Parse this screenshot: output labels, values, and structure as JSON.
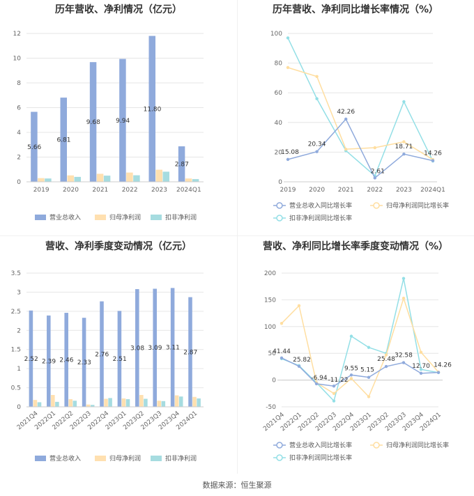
{
  "footer": "数据来源：恒生聚源",
  "colors": {
    "revenue": "#8faadc",
    "net_profit": "#ffe0b0",
    "deducted_profit": "#a6dce0",
    "revenue_line": "#8faadc",
    "net_profit_line": "#ffdea0",
    "deducted_line": "#93dfe6"
  },
  "chart_data": [
    {
      "type": "bar",
      "title": "历年营收、净利情况（亿元）",
      "categories": [
        "2019",
        "2020",
        "2021",
        "2022",
        "2023",
        "2024Q1"
      ],
      "ylim": [
        0,
        12
      ],
      "yticks": [
        0,
        2,
        4,
        6,
        8,
        10,
        12
      ],
      "series": [
        {
          "name": "营业总收入",
          "values": [
            5.66,
            6.81,
            9.68,
            9.94,
            11.8,
            2.87
          ],
          "labels": [
            "5.66",
            "6.81",
            "9.68",
            "9.94",
            "11.80",
            "2.87"
          ]
        },
        {
          "name": "归母净利润",
          "values": [
            0.3,
            0.52,
            0.65,
            0.75,
            0.98,
            0.27
          ]
        },
        {
          "name": "扣非净利润",
          "values": [
            0.27,
            0.4,
            0.5,
            0.53,
            0.82,
            0.22
          ]
        }
      ],
      "legend": "bottom"
    },
    {
      "type": "line",
      "title": "历年营收、净利同比增长率情况（%）",
      "categories": [
        "2019",
        "2020",
        "2021",
        "2022",
        "2023",
        "2024Q1"
      ],
      "ylim": [
        0,
        100
      ],
      "yticks": [
        0,
        20,
        40,
        60,
        80,
        100
      ],
      "series": [
        {
          "name": "营业总收入同比增长率",
          "values": [
            15.08,
            20.34,
            42.26,
            2.61,
            18.71,
            14.26
          ],
          "labels": [
            "15.08",
            "20.34",
            "42.26",
            "2.61",
            "18.71",
            "14.26"
          ]
        },
        {
          "name": "归母净利润同比增长率",
          "values": [
            77,
            71,
            22,
            23,
            27,
            15
          ]
        },
        {
          "name": "扣非净利润同比增长率",
          "values": [
            97,
            56,
            21,
            4,
            54,
            14
          ]
        }
      ],
      "legend": "bottom"
    },
    {
      "type": "bar",
      "title": "营收、净利季度变动情况（亿元）",
      "categories": [
        "2021Q4",
        "2022Q1",
        "2022Q2",
        "2022Q3",
        "2022Q4",
        "2023Q1",
        "2023Q2",
        "2023Q3",
        "2023Q4",
        "2024Q1"
      ],
      "ylim": [
        0,
        3.5
      ],
      "yticks": [
        0,
        0.5,
        1,
        1.5,
        2,
        2.5,
        3,
        3.5
      ],
      "series": [
        {
          "name": "营业总收入",
          "values": [
            2.52,
            2.39,
            2.46,
            2.33,
            2.76,
            2.51,
            3.08,
            3.09,
            3.11,
            2.87
          ],
          "labels": [
            "2.52",
            "2.39",
            "2.46",
            "2.33",
            "2.76",
            "2.51",
            "3.08",
            "3.09",
            "3.11",
            "2.87"
          ]
        },
        {
          "name": "归母净利润",
          "values": [
            0.18,
            0.31,
            0.2,
            0.06,
            0.21,
            0.22,
            0.31,
            0.16,
            0.3,
            0.26
          ]
        },
        {
          "name": "扣非净利润",
          "values": [
            0.12,
            0.13,
            0.16,
            0.05,
            0.23,
            0.2,
            0.21,
            0.15,
            0.27,
            0.22
          ]
        }
      ],
      "legend": "bottom"
    },
    {
      "type": "line",
      "title": "营收、净利同比增长率季度变动情况（%）",
      "categories": [
        "2021Q4",
        "2022Q1",
        "2022Q2",
        "2022Q3",
        "2022Q4",
        "2023Q1",
        "2023Q2",
        "2023Q3",
        "2023Q4",
        "2024Q1"
      ],
      "ylim": [
        -50,
        200
      ],
      "yticks": [
        -50,
        0,
        50,
        100,
        150,
        200
      ],
      "series": [
        {
          "name": "营业总收入同比增长率",
          "values": [
            41.44,
            25.82,
            -6.94,
            -11.22,
            9.55,
            5.15,
            25.48,
            32.58,
            12.7,
            14.26
          ],
          "labels": [
            "41.44",
            "25.82",
            "-6.94",
            "-11.22",
            "9.55",
            "5.15",
            "25.48",
            "32.58",
            "12.70",
            "14.26"
          ]
        },
        {
          "name": "归母净利润同比增长率",
          "values": [
            106,
            139,
            -5,
            -25,
            3,
            -31,
            47,
            153,
            52,
            15
          ]
        },
        {
          "name": "扣非净利润同比增长率",
          "values": [
            40,
            27,
            -5,
            -39,
            82,
            61,
            50,
            190,
            20,
            14
          ]
        }
      ],
      "legend": "bottom"
    }
  ]
}
